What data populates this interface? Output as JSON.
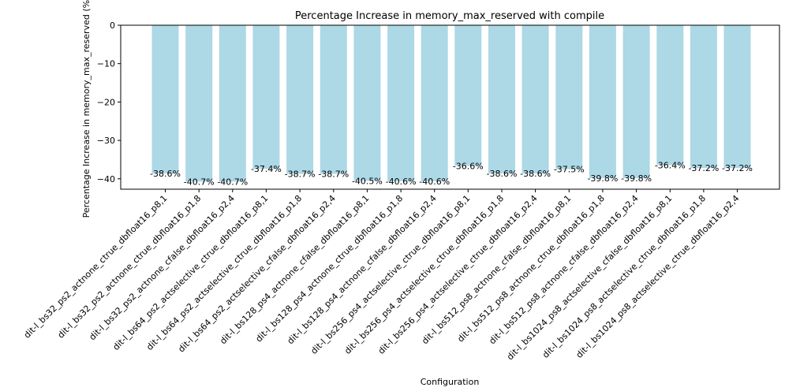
{
  "chart_data": {
    "type": "bar",
    "title": "Percentage Increase in memory_max_reserved with compile",
    "xlabel": "Configuration",
    "ylabel": "Percentage Increase in memory_max_reserved (%)",
    "ylim": [
      -42.7,
      0
    ],
    "yticks": [
      0,
      -10,
      -20,
      -30,
      -40
    ],
    "ytick_labels": [
      "0",
      "−10",
      "−20",
      "−30",
      "−40"
    ],
    "bar_color": "#add8e6",
    "categories": [
      "dit-l_bs32_ps2_actnone_ctrue_dbfloat16_p8,1",
      "dit-l_bs32_ps2_actnone_ctrue_dbfloat16_p1,8",
      "dit-l_bs32_ps2_actnone_cfalse_dbfloat16_p2,4",
      "dit-l_bs64_ps2_actselective_ctrue_dbfloat16_p8,1",
      "dit-l_bs64_ps2_actselective_ctrue_dbfloat16_p1,8",
      "dit-l_bs64_ps2_actselective_cfalse_dbfloat16_p2,4",
      "dit-l_bs128_ps4_actnone_cfalse_dbfloat16_p8,1",
      "dit-l_bs128_ps4_actnone_ctrue_dbfloat16_p1,8",
      "dit-l_bs128_ps4_actnone_cfalse_dbfloat16_p2,4",
      "dit-l_bs256_ps4_actselective_ctrue_dbfloat16_p8,1",
      "dit-l_bs256_ps4_actselective_ctrue_dbfloat16_p1,8",
      "dit-l_bs256_ps4_actselective_ctrue_dbfloat16_p2,4",
      "dit-l_bs512_ps8_actnone_cfalse_dbfloat16_p8,1",
      "dit-l_bs512_ps8_actnone_ctrue_dbfloat16_p1,8",
      "dit-l_bs512_ps8_actnone_cfalse_dbfloat16_p2,4",
      "dit-l_bs1024_ps8_actselective_cfalse_dbfloat16_p8,1",
      "dit-l_bs1024_ps8_actselective_ctrue_dbfloat16_p1,8",
      "dit-l_bs1024_ps8_actselective_ctrue_dbfloat16_p2,4"
    ],
    "values": [
      -38.6,
      -40.7,
      -40.7,
      -37.4,
      -38.7,
      -38.7,
      -40.5,
      -40.6,
      -40.6,
      -36.6,
      -38.6,
      -38.6,
      -37.5,
      -39.8,
      -39.8,
      -36.4,
      -37.2,
      -37.2
    ],
    "value_labels": [
      "-38.6%",
      "-40.7%",
      "-40.7%",
      "-37.4%",
      "-38.7%",
      "-38.7%",
      "-40.5%",
      "-40.6%",
      "-40.6%",
      "-36.6%",
      "-38.6%",
      "-38.6%",
      "-37.5%",
      "-39.8%",
      "-39.8%",
      "-36.4%",
      "-37.2%",
      "-37.2%"
    ]
  }
}
